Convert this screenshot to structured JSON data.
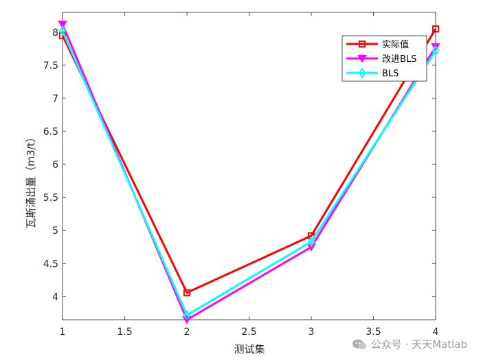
{
  "chart_data": {
    "type": "line",
    "title": "",
    "xlabel": "测试集",
    "ylabel": "瓦斯涌出量（m3/t）",
    "xlim": [
      1,
      4
    ],
    "ylim": [
      3.65,
      8.3
    ],
    "x_ticks": [
      "1",
      "1.5",
      "2",
      "2.5",
      "3",
      "3.5",
      "4"
    ],
    "y_ticks": [
      "4",
      "4.5",
      "5",
      "5.5",
      "6",
      "6.5",
      "7",
      "7.5",
      "8"
    ],
    "x": [
      1,
      2,
      3,
      4
    ],
    "grid": false,
    "legend_position": "top-right",
    "series": [
      {
        "name": "实际值",
        "color": "#ff0000",
        "marker": "square",
        "values": [
          7.95,
          4.06,
          4.92,
          8.05
        ]
      },
      {
        "name": "改进BLS",
        "color": "#ff00ff",
        "marker": "triangle-down",
        "values": [
          8.12,
          3.65,
          4.75,
          7.78
        ]
      },
      {
        "name": "BLS",
        "color": "#00ffff",
        "marker": "diamond",
        "values": [
          8.02,
          3.72,
          4.83,
          7.72
        ]
      }
    ]
  },
  "watermark": {
    "icon": "wechat-icon",
    "text": "公众号 · 天天Matlab"
  }
}
